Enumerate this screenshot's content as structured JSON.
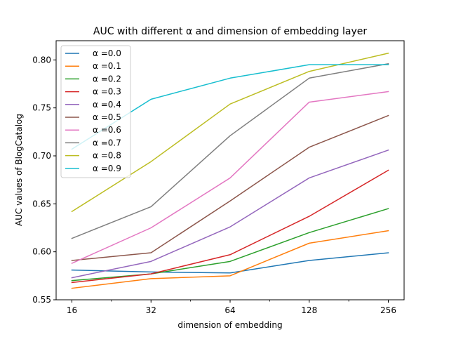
{
  "chart_data": {
    "type": "line",
    "title": "AUC with different α and dimension of embedding layer",
    "xlabel": "dimension of embedding",
    "ylabel": "AUC values of BlogCatalog",
    "x": [
      16,
      32,
      64,
      128,
      256
    ],
    "x_tick_labels": [
      "16",
      "32",
      "64",
      "128",
      "256"
    ],
    "x_scale": "log2",
    "ylim": [
      0.55,
      0.82
    ],
    "y_ticks": [
      0.55,
      0.6,
      0.65,
      0.7,
      0.75,
      0.8
    ],
    "y_tick_labels": [
      "0.55",
      "0.60",
      "0.65",
      "0.70",
      "0.75",
      "0.80"
    ],
    "grid": false,
    "legend_position": "upper-left",
    "series": [
      {
        "name": "α =0.0",
        "color": "#1f77b4",
        "values": [
          0.581,
          0.579,
          0.578,
          0.591,
          0.599
        ]
      },
      {
        "name": "α =0.1",
        "color": "#ff7f0e",
        "values": [
          0.562,
          0.572,
          0.575,
          0.609,
          0.622
        ]
      },
      {
        "name": "α =0.2",
        "color": "#2ca02c",
        "values": [
          0.57,
          0.577,
          0.59,
          0.62,
          0.645
        ]
      },
      {
        "name": "α =0.3",
        "color": "#d62728",
        "values": [
          0.568,
          0.577,
          0.597,
          0.637,
          0.685
        ]
      },
      {
        "name": "α =0.4",
        "color": "#9467bd",
        "values": [
          0.573,
          0.59,
          0.626,
          0.677,
          0.706
        ]
      },
      {
        "name": "α =0.5",
        "color": "#8c564b",
        "values": [
          0.591,
          0.599,
          0.653,
          0.709,
          0.742
        ]
      },
      {
        "name": "α =0.6",
        "color": "#e377c2",
        "values": [
          0.588,
          0.625,
          0.677,
          0.756,
          0.767
        ]
      },
      {
        "name": "α =0.7",
        "color": "#7f7f7f",
        "values": [
          0.614,
          0.647,
          0.721,
          0.781,
          0.796
        ]
      },
      {
        "name": "α =0.8",
        "color": "#bcbd22",
        "values": [
          0.642,
          0.694,
          0.754,
          0.788,
          0.807
        ]
      },
      {
        "name": "α =0.9",
        "color": "#17becf",
        "values": [
          0.707,
          0.759,
          0.781,
          0.795,
          0.795
        ]
      }
    ]
  }
}
